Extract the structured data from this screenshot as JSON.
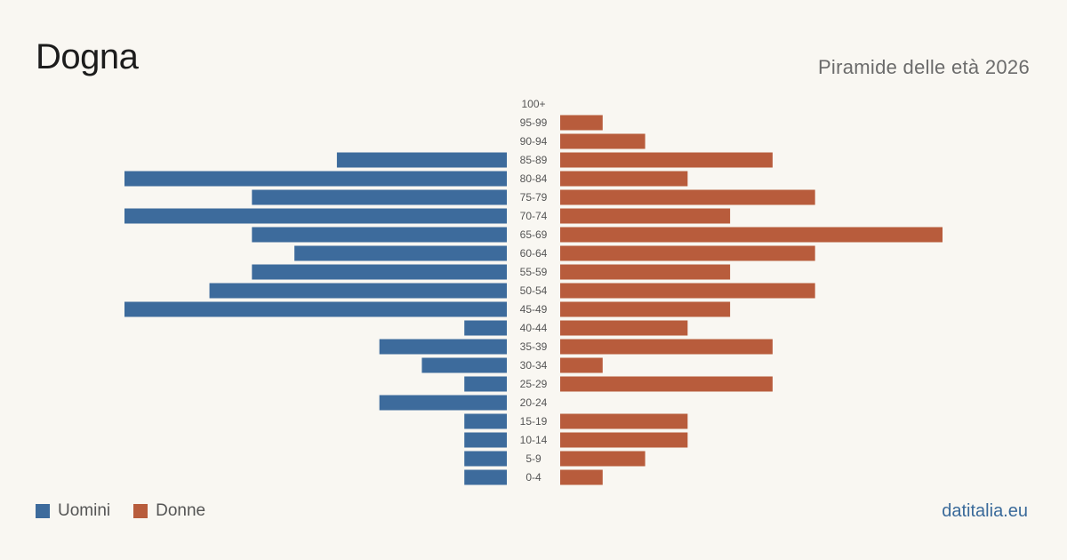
{
  "header": {
    "title": "Dogna",
    "subtitle": "Piramide delle età 2026"
  },
  "legend": {
    "men_label": "Uomini",
    "women_label": "Donne"
  },
  "brand": "datitalia.eu",
  "colors": {
    "men": "#3d6b9c",
    "women": "#b85c3c",
    "background": "#f9f7f2"
  },
  "chart_data": {
    "type": "bar",
    "orientation": "horizontal-pyramid",
    "categories": [
      "100+",
      "95-99",
      "90-94",
      "85-89",
      "80-84",
      "75-79",
      "70-74",
      "65-69",
      "60-64",
      "55-59",
      "50-54",
      "45-49",
      "40-44",
      "35-39",
      "30-34",
      "25-29",
      "20-24",
      "15-19",
      "10-14",
      "5-9",
      "0-4"
    ],
    "series": [
      {
        "name": "Uomini",
        "values": [
          0,
          0,
          0,
          4,
          9,
          6,
          9,
          6,
          5,
          6,
          7,
          9,
          1,
          3,
          2,
          1,
          3,
          1,
          1,
          1,
          1
        ]
      },
      {
        "name": "Donne",
        "values": [
          0,
          1,
          2,
          5,
          3,
          6,
          4,
          9,
          6,
          4,
          6,
          4,
          3,
          5,
          1,
          5,
          0,
          3,
          3,
          2,
          1
        ]
      }
    ],
    "xlim": [
      0,
      9
    ],
    "grid": false,
    "legend_position": "bottom-left"
  }
}
